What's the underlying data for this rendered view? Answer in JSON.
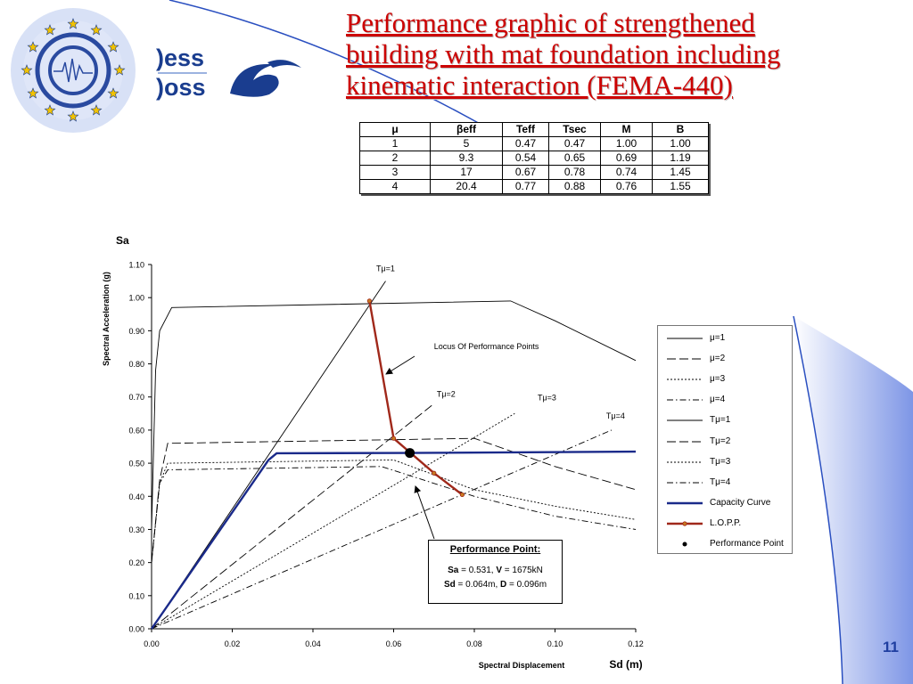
{
  "header": {
    "title_lines": [
      "Performance graphic of strengthened",
      "building with mat foundation including",
      "kinematic interaction (FEMA-440)"
    ],
    "logo_text_top": "ess",
    "logo_text_bottom": "oss",
    "logo_bracket": ")",
    "slide_number": "11"
  },
  "param_table": {
    "headers": [
      "μ",
      "βeff",
      "Teff",
      "Tsec",
      "M",
      "B"
    ],
    "rows": [
      [
        "1",
        "5",
        "0.47",
        "0.47",
        "1.00",
        "1.00"
      ],
      [
        "2",
        "9.3",
        "0.54",
        "0.65",
        "0.69",
        "1.19"
      ],
      [
        "3",
        "17",
        "0.67",
        "0.78",
        "0.74",
        "1.45"
      ],
      [
        "4",
        "20.4",
        "0.77",
        "0.88",
        "0.76",
        "1.55"
      ]
    ]
  },
  "performance_point_box": {
    "title": "Performance Point:",
    "sa_label": "Sa",
    "sa_value": " = 0.531, ",
    "v_label": "V",
    "v_value": " = 1675kN",
    "sd_label": "Sd",
    "sd_value": " = 0.064m, ",
    "d_label": "D",
    "d_value": " = 0.096m"
  },
  "legend": {
    "items": [
      {
        "label": "μ=1",
        "style": "solid",
        "color": "#000000"
      },
      {
        "label": "μ=2",
        "style": "longdash",
        "color": "#000000"
      },
      {
        "label": "μ=3",
        "style": "dotted",
        "color": "#000000"
      },
      {
        "label": "μ=4",
        "style": "dashdot",
        "color": "#000000"
      },
      {
        "label": "Tμ=1",
        "style": "solid",
        "color": "#000000"
      },
      {
        "label": "Tμ=2",
        "style": "longdash",
        "color": "#000000"
      },
      {
        "label": "Tμ=3",
        "style": "dotted",
        "color": "#000000"
      },
      {
        "label": "Tμ=4",
        "style": "dashdot",
        "color": "#000000"
      },
      {
        "label": "Capacity Curve",
        "style": "thick",
        "color": "#1a2a8a"
      },
      {
        "label": "L.O.P.P.",
        "style": "marker",
        "color": "#a0281a"
      },
      {
        "label": "Performance Point",
        "style": "dot",
        "color": "#000000"
      }
    ]
  },
  "colors": {
    "title": "#cc0000",
    "capacity": "#1a2a8a",
    "lopp": "#a0281a",
    "accent_blue": "#1f3ea0"
  },
  "chart_data": {
    "type": "line",
    "title": "",
    "xlabel": "Spectral Displacement",
    "xlabel_unit": "Sd (m)",
    "ylabel": "Spectral Acceleration (g)",
    "ylabel_unit": "Sa",
    "xlim": [
      0,
      0.12
    ],
    "ylim": [
      0,
      1.1
    ],
    "x_ticks": [
      "0.00",
      "0.02",
      "0.04",
      "0.06",
      "0.08",
      "0.10",
      "0.12"
    ],
    "y_ticks": [
      "0.00",
      "0.10",
      "0.20",
      "0.30",
      "0.40",
      "0.50",
      "0.60",
      "0.70",
      "0.80",
      "0.90",
      "1.00",
      "1.10"
    ],
    "grid": false,
    "legend_position": "right",
    "series": [
      {
        "name": "μ=1",
        "style": "solid",
        "points": [
          [
            0,
            0.3
          ],
          [
            0.001,
            0.78
          ],
          [
            0.002,
            0.9
          ],
          [
            0.005,
            0.97
          ],
          [
            0.089,
            0.99
          ],
          [
            0.1,
            0.93
          ],
          [
            0.12,
            0.81
          ]
        ]
      },
      {
        "name": "μ=2",
        "style": "longdash",
        "points": [
          [
            0,
            0.2
          ],
          [
            0.002,
            0.45
          ],
          [
            0.004,
            0.56
          ],
          [
            0.08,
            0.575
          ],
          [
            0.1,
            0.49
          ],
          [
            0.12,
            0.42
          ]
        ]
      },
      {
        "name": "μ=3",
        "style": "dotted",
        "points": [
          [
            0,
            0.2
          ],
          [
            0.002,
            0.44
          ],
          [
            0.004,
            0.5
          ],
          [
            0.06,
            0.51
          ],
          [
            0.08,
            0.42
          ],
          [
            0.1,
            0.37
          ],
          [
            0.12,
            0.33
          ]
        ]
      },
      {
        "name": "μ=4",
        "style": "dashdot",
        "points": [
          [
            0,
            0.2
          ],
          [
            0.002,
            0.44
          ],
          [
            0.004,
            0.48
          ],
          [
            0.057,
            0.49
          ],
          [
            0.08,
            0.4
          ],
          [
            0.1,
            0.34
          ],
          [
            0.12,
            0.3
          ]
        ]
      },
      {
        "name": "Tμ=1",
        "style": "solid",
        "points": [
          [
            0,
            0
          ],
          [
            0.058,
            1.05
          ]
        ]
      },
      {
        "name": "Tμ=2",
        "style": "longdash",
        "points": [
          [
            0,
            0
          ],
          [
            0.07,
            0.68
          ]
        ]
      },
      {
        "name": "Tμ=3",
        "style": "dotted",
        "points": [
          [
            0,
            0
          ],
          [
            0.09,
            0.65
          ]
        ]
      },
      {
        "name": "Tμ=4",
        "style": "dashdot",
        "points": [
          [
            0,
            0
          ],
          [
            0.114,
            0.6
          ]
        ]
      },
      {
        "name": "Capacity Curve",
        "style": "thick",
        "points": [
          [
            0,
            0
          ],
          [
            0.029,
            0.51
          ],
          [
            0.031,
            0.53
          ],
          [
            0.064,
            0.531
          ],
          [
            0.12,
            0.535
          ]
        ]
      },
      {
        "name": "L.O.P.P.",
        "style": "marker",
        "points": [
          [
            0.054,
            0.99
          ],
          [
            0.06,
            0.575
          ],
          [
            0.07,
            0.47
          ],
          [
            0.077,
            0.405
          ]
        ]
      },
      {
        "name": "Performance Point",
        "style": "dot",
        "points": [
          [
            0.064,
            0.531
          ]
        ]
      }
    ],
    "annotations": [
      {
        "text": "Tμ=1",
        "x": 0.058,
        "y": 1.08
      },
      {
        "text": "Tμ=2",
        "x": 0.073,
        "y": 0.7
      },
      {
        "text": "Tμ=3",
        "x": 0.098,
        "y": 0.69
      },
      {
        "text": "Tμ=4",
        "x": 0.115,
        "y": 0.635
      },
      {
        "text": "Locus Of Performance Points",
        "x": 0.083,
        "y": 0.845
      }
    ]
  }
}
